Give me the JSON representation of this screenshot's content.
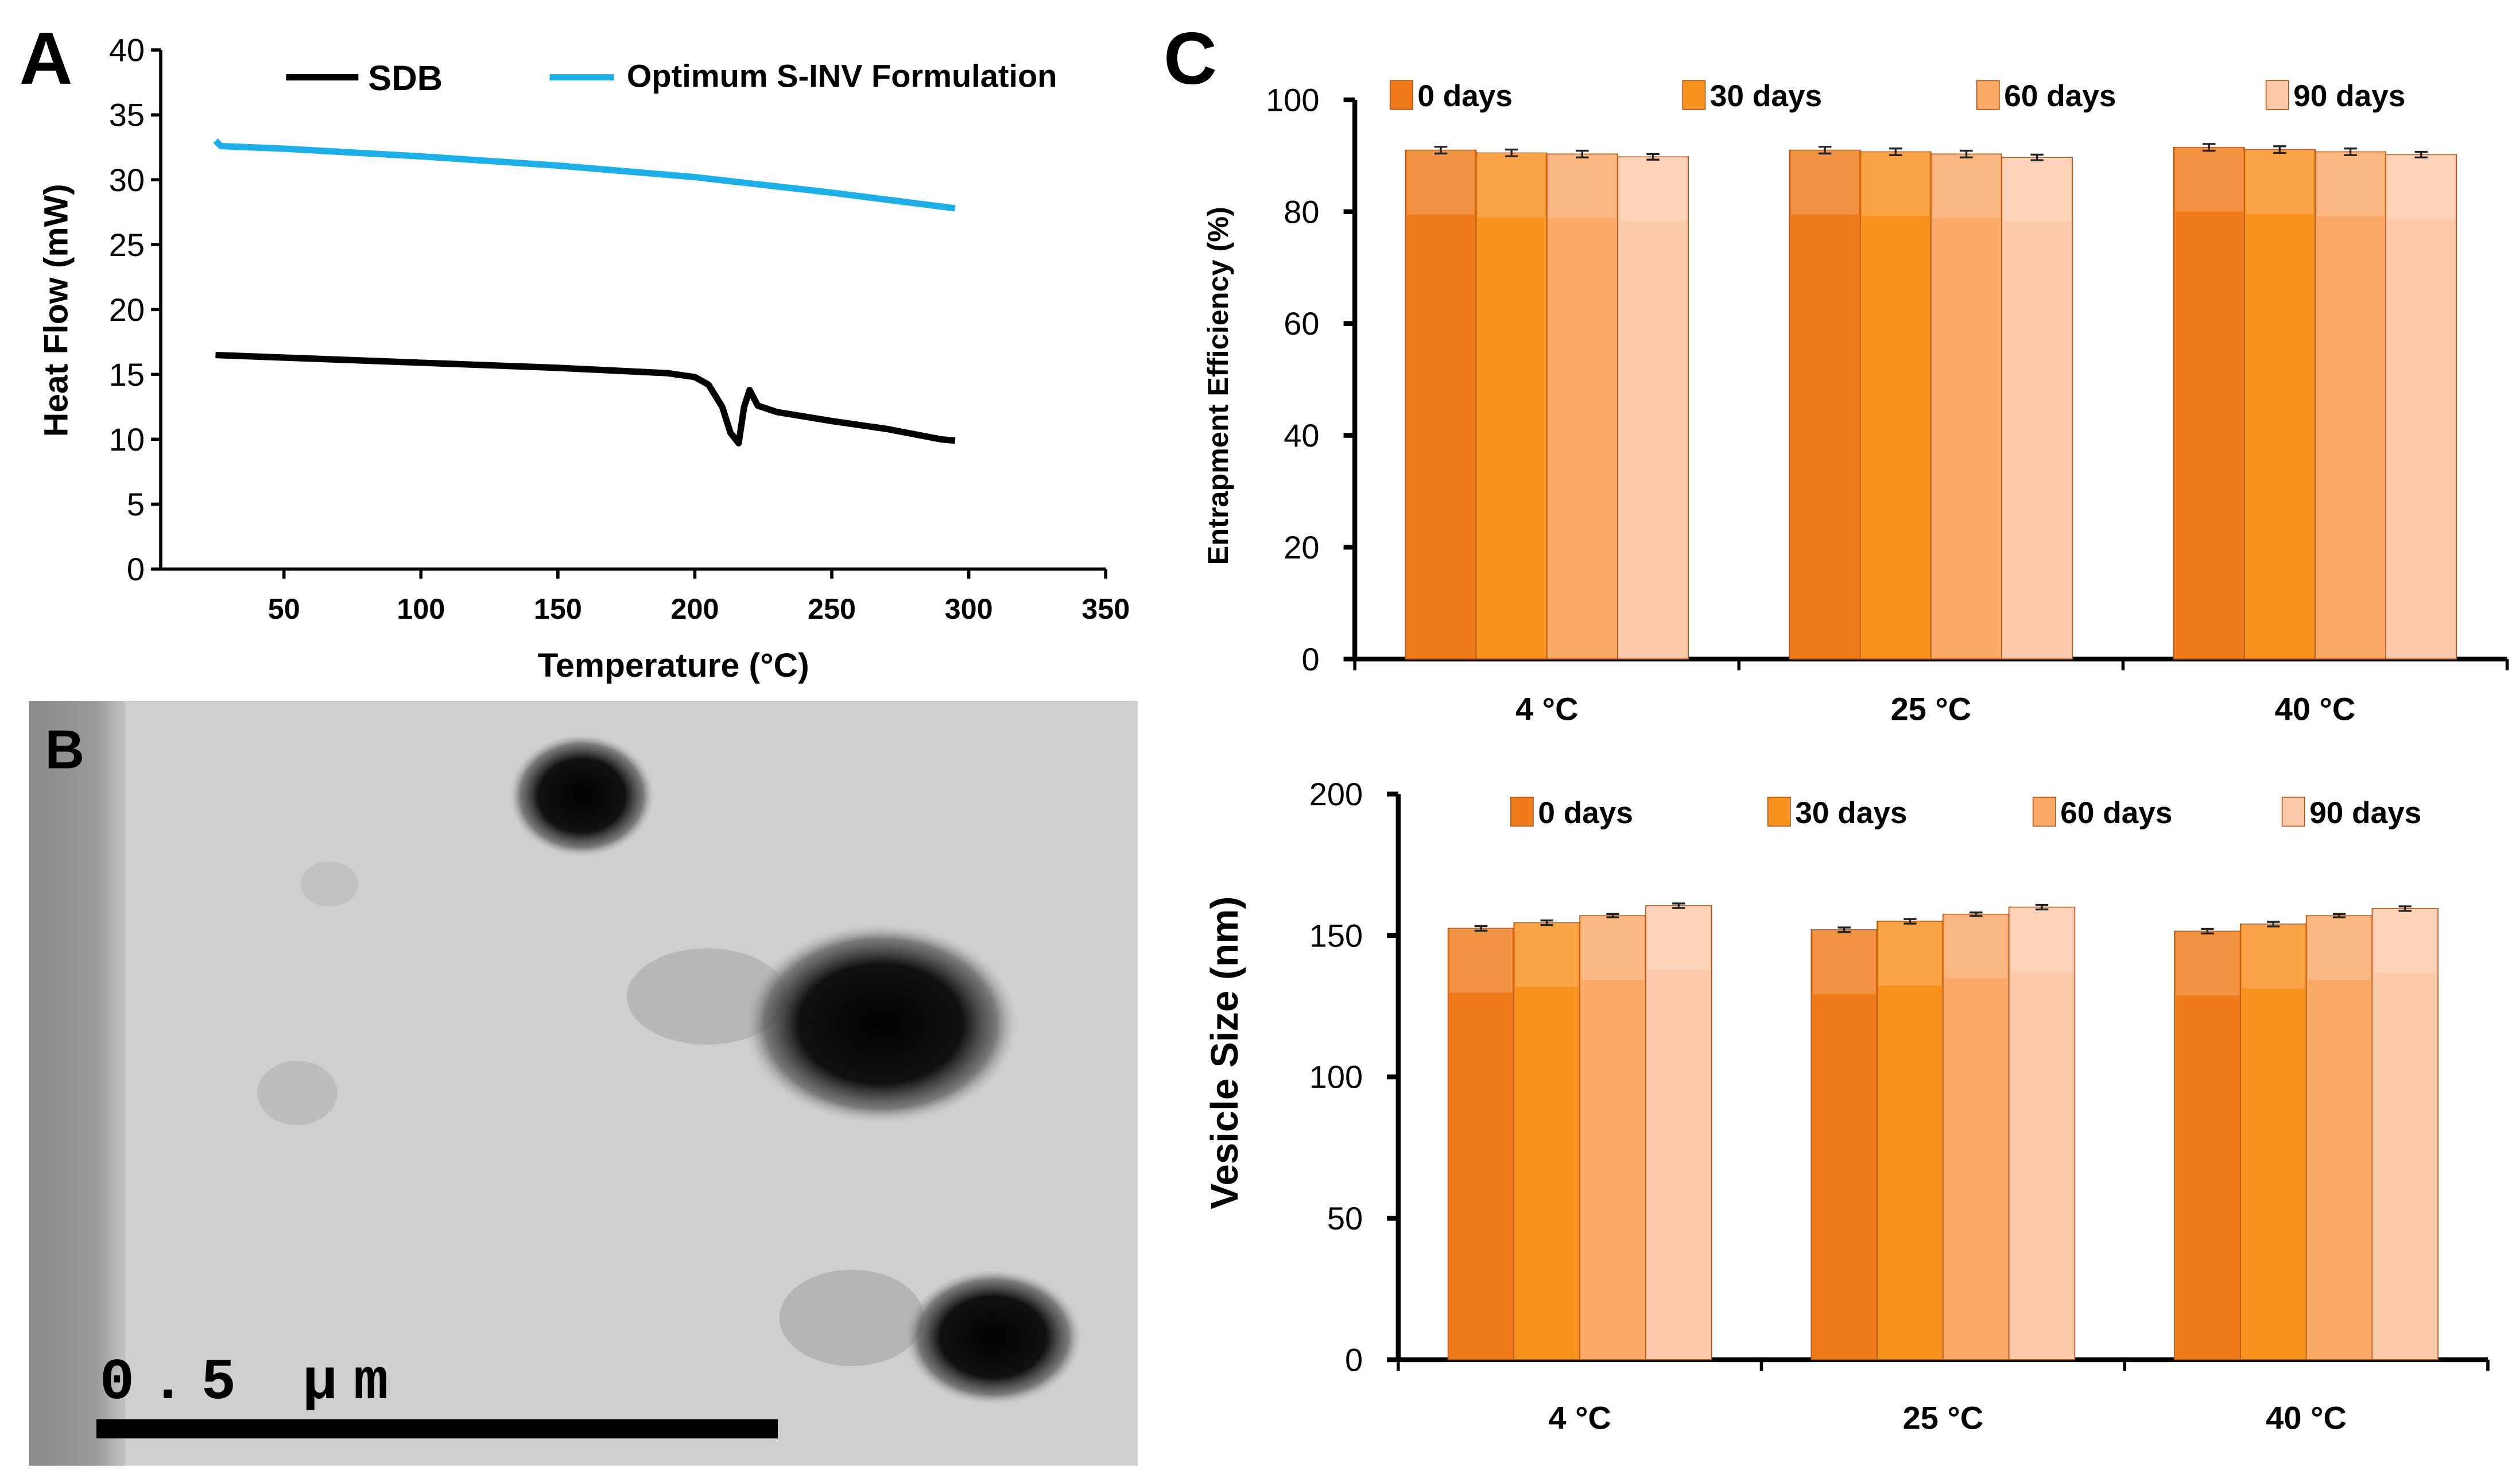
{
  "panels": {
    "a": "A",
    "b": "B",
    "c": "C"
  },
  "chart_data": [
    {
      "type": "line",
      "panel": "A",
      "xlabel": "Temperature (°C)",
      "ylabel": "Heat Flow (mW)",
      "xlim": [
        5,
        350
      ],
      "ylim": [
        0,
        40
      ],
      "xticks": [
        50,
        100,
        150,
        200,
        250,
        300,
        350
      ],
      "yticks": [
        0,
        5,
        10,
        15,
        20,
        25,
        30,
        35,
        40
      ],
      "legend_position": "top",
      "series": [
        {
          "name": "SDB",
          "color": "#000000",
          "x": [
            25,
            50,
            100,
            150,
            190,
            200,
            205,
            210,
            213,
            216,
            218,
            220,
            223,
            230,
            250,
            270,
            290,
            295
          ],
          "y": [
            16.5,
            16.3,
            15.9,
            15.5,
            15.1,
            14.8,
            14.2,
            12.5,
            10.5,
            9.7,
            12.5,
            13.8,
            12.6,
            12.1,
            11.4,
            10.8,
            10.0,
            9.9
          ]
        },
        {
          "name": "Optimum S-INV Formulation",
          "color": "#1eaee8",
          "x": [
            25,
            27,
            50,
            100,
            150,
            200,
            250,
            295
          ],
          "y": [
            33.0,
            32.6,
            32.4,
            31.8,
            31.1,
            30.2,
            29.0,
            27.8
          ]
        }
      ]
    },
    {
      "type": "bar",
      "panel": "C-top",
      "ylabel": "Entrapment Efficiency (%)",
      "ylim": [
        0,
        100
      ],
      "yticks": [
        0,
        20,
        40,
        60,
        80,
        100
      ],
      "categories": [
        "4 °C",
        "25 °C",
        "40 °C"
      ],
      "legend_position": "top",
      "series": [
        {
          "name": "0 days",
          "color": "#ef7a1a",
          "values": [
            91.0,
            91.0,
            91.5
          ],
          "errors": [
            0.6,
            0.6,
            0.6
          ]
        },
        {
          "name": "30 days",
          "color": "#f8921f",
          "values": [
            90.5,
            90.7,
            91.1
          ],
          "errors": [
            0.6,
            0.6,
            0.6
          ]
        },
        {
          "name": "60 days",
          "color": "#f9a866",
          "values": [
            90.3,
            90.3,
            90.7
          ],
          "errors": [
            0.6,
            0.6,
            0.6
          ]
        },
        {
          "name": "90 days",
          "color": "#fcc9aa",
          "values": [
            89.8,
            89.7,
            90.2
          ],
          "errors": [
            0.5,
            0.5,
            0.5
          ]
        }
      ]
    },
    {
      "type": "bar",
      "panel": "C-bottom",
      "ylabel": "Vesicle Size (nm)",
      "ylim": [
        0,
        200
      ],
      "yticks": [
        0,
        50,
        100,
        150,
        200
      ],
      "categories": [
        "4 °C",
        "25 °C",
        "40 °C"
      ],
      "legend_position": "top",
      "series": [
        {
          "name": "0 days",
          "color": "#ef7a1a",
          "values": [
            152.5,
            152.0,
            151.5
          ],
          "errors": [
            0.8,
            0.8,
            0.8
          ]
        },
        {
          "name": "30 days",
          "color": "#f8921f",
          "values": [
            154.5,
            155.0,
            154.0
          ],
          "errors": [
            0.8,
            0.8,
            0.8
          ]
        },
        {
          "name": "60 days",
          "color": "#f9a866",
          "values": [
            157.0,
            157.5,
            157.0
          ],
          "errors": [
            0.6,
            0.6,
            0.6
          ]
        },
        {
          "name": "90 days",
          "color": "#fcc9aa",
          "values": [
            160.5,
            160.0,
            159.5
          ],
          "errors": [
            0.8,
            0.8,
            0.8
          ]
        }
      ]
    }
  ],
  "tem_image": {
    "scale_bar_label": "0.5 µm"
  }
}
